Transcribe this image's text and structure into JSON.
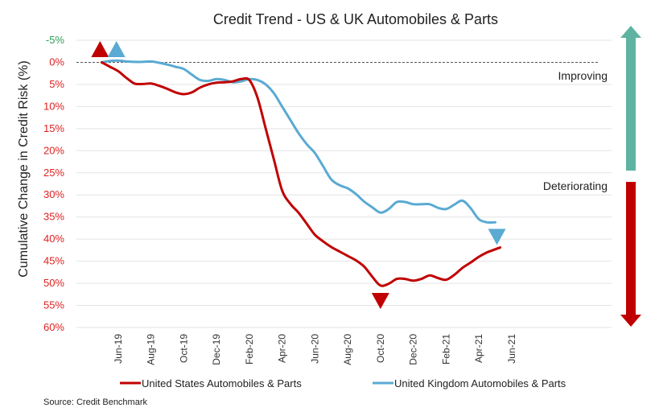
{
  "chart_data": {
    "type": "line",
    "title": "Credit Trend - US & UK Automobiles & Parts",
    "ylabel": "Cumulative Change in Credit Risk (%)",
    "xlabel": "",
    "ylim": [
      -5,
      60
    ],
    "y_inverted": true,
    "y_ticks": [
      {
        "value": -5,
        "label": "-5%"
      },
      {
        "value": 0,
        "label": "0%"
      },
      {
        "value": 5,
        "label": "5%"
      },
      {
        "value": 10,
        "label": "10%"
      },
      {
        "value": 15,
        "label": "15%"
      },
      {
        "value": 20,
        "label": "20%"
      },
      {
        "value": 25,
        "label": "25%"
      },
      {
        "value": 30,
        "label": "30%"
      },
      {
        "value": 35,
        "label": "35%"
      },
      {
        "value": 40,
        "label": "40%"
      },
      {
        "value": 45,
        "label": "45%"
      },
      {
        "value": 50,
        "label": "50%"
      },
      {
        "value": 55,
        "label": "55%"
      },
      {
        "value": 60,
        "label": "60%"
      }
    ],
    "x_range": [
      -2,
      23
    ],
    "x_ticks": [
      {
        "value": 0,
        "label": "Jun-19"
      },
      {
        "value": 2,
        "label": "Aug-19"
      },
      {
        "value": 4,
        "label": "Oct-19"
      },
      {
        "value": 6,
        "label": "Dec-19"
      },
      {
        "value": 8,
        "label": "Feb-20"
      },
      {
        "value": 10,
        "label": "Apr-20"
      },
      {
        "value": 12,
        "label": "Jun-20"
      },
      {
        "value": 14,
        "label": "Aug-20"
      },
      {
        "value": 16,
        "label": "Oct-20"
      },
      {
        "value": 18,
        "label": "Dec-20"
      },
      {
        "value": 20,
        "label": "Feb-21"
      },
      {
        "value": 22,
        "label": "Apr-21"
      },
      {
        "value": 24,
        "label": "Jun-21"
      }
    ],
    "series": [
      {
        "name": "United States Automobiles & Parts",
        "color": "#c00000",
        "points": [
          [
            -1,
            0
          ],
          [
            -0.5,
            1
          ],
          [
            0,
            2
          ],
          [
            0.5,
            3.5
          ],
          [
            1,
            4.8
          ],
          [
            1.5,
            4.9
          ],
          [
            2,
            4.8
          ],
          [
            2.5,
            5.3
          ],
          [
            3,
            6
          ],
          [
            3.5,
            6.8
          ],
          [
            4,
            7.2
          ],
          [
            4.5,
            6.8
          ],
          [
            5,
            5.7
          ],
          [
            5.5,
            5
          ],
          [
            6,
            4.6
          ],
          [
            6.5,
            4.5
          ],
          [
            7,
            4.3
          ],
          [
            7.5,
            3.8
          ],
          [
            8,
            4
          ],
          [
            8.5,
            8
          ],
          [
            9,
            15
          ],
          [
            9.5,
            22
          ],
          [
            10,
            29
          ],
          [
            10.5,
            32
          ],
          [
            11,
            34
          ],
          [
            11.5,
            36.5
          ],
          [
            12,
            39
          ],
          [
            12.5,
            40.5
          ],
          [
            13,
            41.8
          ],
          [
            13.5,
            42.8
          ],
          [
            14,
            43.8
          ],
          [
            14.5,
            44.8
          ],
          [
            15,
            46.2
          ],
          [
            15.5,
            48.5
          ],
          [
            16,
            50.5
          ],
          [
            16.5,
            50.1
          ],
          [
            17,
            49
          ],
          [
            17.5,
            49
          ],
          [
            18,
            49.4
          ],
          [
            18.5,
            49
          ],
          [
            19,
            48.2
          ],
          [
            19.5,
            48.8
          ],
          [
            20,
            49.2
          ],
          [
            20.5,
            48.1
          ],
          [
            21,
            46.5
          ],
          [
            21.5,
            45.3
          ],
          [
            22,
            44
          ],
          [
            22.5,
            43
          ],
          [
            23,
            42.3
          ],
          [
            23.3,
            41.9
          ]
        ]
      },
      {
        "name": "United Kingdom Automobiles & Parts",
        "color": "#5aaad3",
        "points": [
          [
            -1,
            0
          ],
          [
            -0.5,
            -0.3
          ],
          [
            0,
            -0.4
          ],
          [
            0.5,
            -0.2
          ],
          [
            1,
            -0.1
          ],
          [
            1.5,
            -0.1
          ],
          [
            2,
            -0.2
          ],
          [
            2.5,
            0.1
          ],
          [
            3,
            0.5
          ],
          [
            3.5,
            1
          ],
          [
            4,
            1.5
          ],
          [
            4.5,
            2.8
          ],
          [
            5,
            4
          ],
          [
            5.5,
            4.2
          ],
          [
            6,
            3.8
          ],
          [
            6.5,
            4
          ],
          [
            7,
            4.5
          ],
          [
            7.5,
            4.3
          ],
          [
            8,
            3.8
          ],
          [
            8.5,
            4
          ],
          [
            9,
            5
          ],
          [
            9.5,
            7
          ],
          [
            10,
            10
          ],
          [
            10.5,
            13
          ],
          [
            11,
            16
          ],
          [
            11.5,
            18.5
          ],
          [
            12,
            20.5
          ],
          [
            12.5,
            23.5
          ],
          [
            13,
            26.5
          ],
          [
            13.5,
            27.8
          ],
          [
            14,
            28.5
          ],
          [
            14.5,
            29.8
          ],
          [
            15,
            31.5
          ],
          [
            15.5,
            32.8
          ],
          [
            16,
            34
          ],
          [
            16.5,
            33.2
          ],
          [
            17,
            31.6
          ],
          [
            17.5,
            31.6
          ],
          [
            18,
            32.1
          ],
          [
            18.5,
            32.1
          ],
          [
            19,
            32.1
          ],
          [
            19.5,
            32.9
          ],
          [
            20,
            33.2
          ],
          [
            20.5,
            32.2
          ],
          [
            21,
            31.3
          ],
          [
            21.5,
            33
          ],
          [
            22,
            35.5
          ],
          [
            22.5,
            36.2
          ],
          [
            23,
            36.2
          ]
        ]
      }
    ],
    "annotations": {
      "improving": "Improving",
      "deteriorating": "Deteriorating",
      "source": "Source: Credit Benchmark"
    },
    "markers": [
      {
        "series": 0,
        "direction": "up",
        "x": -1.1,
        "y": -3
      },
      {
        "series": 1,
        "direction": "up",
        "x": -0.1,
        "y": -3
      },
      {
        "series": 0,
        "direction": "down",
        "x": 16,
        "y": 54
      },
      {
        "series": 1,
        "direction": "down",
        "x": 23.1,
        "y": 39.5
      }
    ],
    "colors": {
      "improving_arrow": "#5fb3a1",
      "deteriorating_arrow": "#c00000",
      "positive_tick": "#2e9e55",
      "negative_tick": "#e02020",
      "grid": "#e3e3e3",
      "zero_line": "#555555"
    }
  }
}
